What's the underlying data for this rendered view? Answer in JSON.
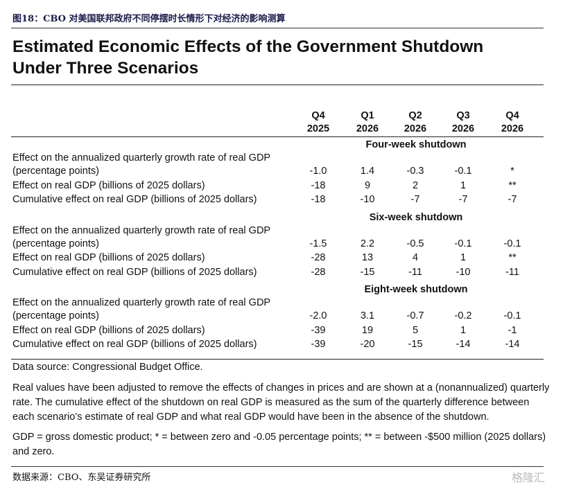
{
  "figure_label": "图18：CBO 对美国联邦政府不同停摆时长情形下对经济的影响测算",
  "title": "Estimated Economic Effects of the Government Shutdown Under Three Scenarios",
  "columns": [
    {
      "quarter": "Q4",
      "year": "2025"
    },
    {
      "quarter": "Q1",
      "year": "2026"
    },
    {
      "quarter": "Q2",
      "year": "2026"
    },
    {
      "quarter": "Q3",
      "year": "2026"
    },
    {
      "quarter": "Q4",
      "year": "2026"
    }
  ],
  "sections": [
    {
      "name": "Four-week shutdown",
      "rows": [
        {
          "label": [
            "Effect on the annualized quarterly growth rate of real GDP",
            "(percentage points)"
          ],
          "values": [
            "-1.0",
            "1.4",
            "-0.3",
            "-0.1",
            "*"
          ]
        },
        {
          "label": [
            "Effect on real GDP (billions of 2025 dollars)"
          ],
          "values": [
            "-18",
            "9",
            "2",
            "1",
            "**"
          ]
        },
        {
          "label": [
            "Cumulative effect on real GDP (billions of 2025 dollars)"
          ],
          "values": [
            "-18",
            "-10",
            "-7",
            "-7",
            "-7"
          ]
        }
      ]
    },
    {
      "name": "Six-week shutdown",
      "rows": [
        {
          "label": [
            "Effect on the annualized quarterly growth rate of real GDP",
            "(percentage points)"
          ],
          "values": [
            "-1.5",
            "2.2",
            "-0.5",
            "-0.1",
            "-0.1"
          ]
        },
        {
          "label": [
            "Effect on real GDP (billions of 2025 dollars)"
          ],
          "values": [
            "-28",
            "13",
            "4",
            "1",
            "**"
          ]
        },
        {
          "label": [
            "Cumulative effect on real GDP (billions of 2025 dollars)"
          ],
          "values": [
            "-28",
            "-15",
            "-11",
            "-10",
            "-11"
          ]
        }
      ]
    },
    {
      "name": "Eight-week shutdown",
      "rows": [
        {
          "label": [
            "Effect on the annualized quarterly growth rate of real GDP",
            "(percentage points)"
          ],
          "values": [
            "-2.0",
            "3.1",
            "-0.7",
            "-0.2",
            "-0.1"
          ]
        },
        {
          "label": [
            "Effect on real GDP (billions of 2025 dollars)"
          ],
          "values": [
            "-39",
            "19",
            "5",
            "1",
            "-1"
          ]
        },
        {
          "label": [
            "Cumulative effect on real GDP (billions of 2025 dollars)"
          ],
          "values": [
            "-39",
            "-20",
            "-15",
            "-14",
            "-14"
          ]
        }
      ]
    }
  ],
  "data_source": "Data source: Congressional Budget Office.",
  "notes": [
    "Real values have been adjusted to remove the effects of changes in prices and are shown at a (nonannualized) quarterly rate. The cumulative effect of the shutdown on real GDP is measured as the sum of the quarterly difference between each scenario’s estimate of real GDP and what real GDP would have been in the absence of the shutdown.",
    "GDP = gross domestic product; * = between zero and -0.05 percentage points; ** = between -$500 million (2025 dollars) and zero."
  ],
  "footer_source": "数据来源：CBO、东吴证券研究所",
  "watermark": "格隆汇"
}
